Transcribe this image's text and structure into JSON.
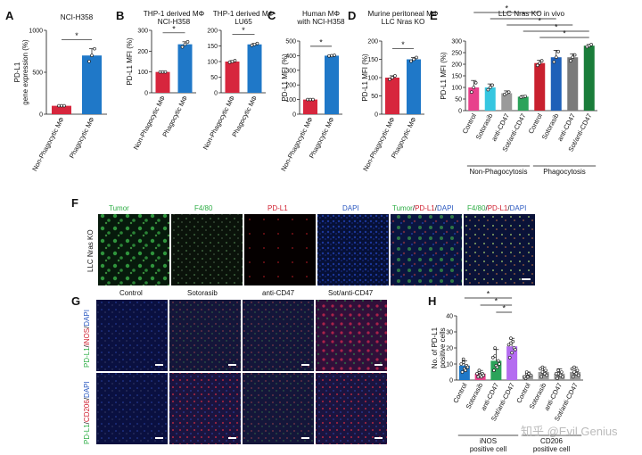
{
  "panel_letters": [
    "A",
    "B",
    "C",
    "D",
    "E",
    "F",
    "G",
    "H"
  ],
  "sig": "*",
  "watermark": "知乎 @Evil Genius",
  "colors": {
    "red": "#d7263d",
    "blue": "#1f78c8",
    "pink": "#e8418c",
    "cyan": "#36c6e0",
    "gray": "#9a9a9a",
    "green": "#2ba35a",
    "darkred": "#c8202e",
    "dkblue": "#1e60b8",
    "dkgray": "#7a7a7a",
    "dkgreen": "#1a7d3a"
  },
  "chart_data": [
    {
      "id": "A",
      "type": "bar",
      "title": "NCI-H358",
      "ylabel": "PD-L1\ngene expression (%)",
      "categories": [
        "Non-Phagocytic MΦ",
        "Phagocytic MΦ"
      ],
      "values": [
        100,
        700
      ],
      "points": [
        [
          100,
          100,
          100
        ],
        [
          630,
          700,
          780
        ]
      ],
      "ylim": [
        0,
        1000
      ],
      "yticks": [
        0,
        500,
        1000
      ],
      "colors": [
        "red",
        "blue"
      ]
    },
    {
      "id": "B1",
      "type": "bar",
      "title": "THP-1 derived MΦ\nNCI-H358",
      "ylabel": "PD-L1  MFI (%)",
      "categories": [
        "Non-Phagocytic MΦ",
        "Phagocytic MΦ"
      ],
      "values": [
        100,
        233
      ],
      "points": [
        [
          100,
          100,
          100
        ],
        [
          220,
          233,
          245
        ]
      ],
      "ylim": [
        0,
        300
      ],
      "yticks": [
        0,
        100,
        200,
        300
      ],
      "colors": [
        "red",
        "blue"
      ]
    },
    {
      "id": "B2",
      "type": "bar",
      "title": "THP-1 derived MΦ\nLU65",
      "ylabel": "",
      "categories": [
        "Non-Phagocytic MΦ",
        "Phagocytic MΦ"
      ],
      "values": [
        100,
        155
      ],
      "points": [
        [
          98,
          100,
          103
        ],
        [
          152,
          155,
          158
        ]
      ],
      "ylim": [
        0,
        200
      ],
      "yticks": [
        0,
        50,
        100,
        150,
        200
      ],
      "colors": [
        "red",
        "blue"
      ]
    },
    {
      "id": "C",
      "type": "bar",
      "title": "Human MΦ\nwith NCI-H358",
      "ylabel": "PD-L1  MFI (%)",
      "categories": [
        "Non-Phagocytic MΦ",
        "Phagocytic MΦ"
      ],
      "values": [
        100,
        400
      ],
      "points": [
        [
          100,
          100,
          100
        ],
        [
          398,
          400,
          403
        ]
      ],
      "ylim": [
        0,
        500
      ],
      "yticks": [
        0,
        100,
        200,
        300,
        400,
        500
      ],
      "colors": [
        "red",
        "blue"
      ]
    },
    {
      "id": "D",
      "type": "bar",
      "title": "Murine peritoneal MΦ\nLLC Nras KO",
      "ylabel": "PD-L1  MFI (%)",
      "categories": [
        "Non-Phagocytic MΦ",
        "Phagocytic MΦ"
      ],
      "values": [
        100,
        150
      ],
      "points": [
        [
          95,
          100,
          105
        ],
        [
          145,
          150,
          155
        ]
      ],
      "ylim": [
        0,
        200
      ],
      "yticks": [
        0,
        50,
        100,
        150,
        200
      ],
      "colors": [
        "red",
        "blue"
      ]
    },
    {
      "id": "E",
      "type": "bar",
      "title": "LLC Nras KO in vivo",
      "ylabel": "PD-L1  MFI (%)",
      "categories": [
        "Control",
        "Sotorasib",
        "anti-CD47",
        "Sot/anti-CD47",
        "Control",
        "Sotorasib",
        "anti-CD47",
        "Sot/anti-CD47"
      ],
      "groups": [
        {
          "label": "Non-Phagocytosis",
          "from": 0,
          "to": 3
        },
        {
          "label": "Phagocytosis",
          "from": 4,
          "to": 7
        }
      ],
      "values": [
        100,
        100,
        75,
        60,
        205,
        230,
        230,
        280
      ],
      "points": [
        [
          80,
          100,
          120
        ],
        [
          90,
          100,
          110
        ],
        [
          70,
          75,
          80
        ],
        [
          58,
          60,
          62
        ],
        [
          195,
          205,
          215
        ],
        [
          210,
          230,
          255
        ],
        [
          215,
          230,
          240
        ],
        [
          275,
          280,
          285
        ]
      ],
      "errors": [
        30,
        15,
        10,
        5,
        12,
        30,
        15,
        5
      ],
      "ylim": [
        0,
        300
      ],
      "yticks": [
        0,
        50,
        100,
        150,
        200,
        250,
        300
      ],
      "colors": [
        "pink",
        "cyan",
        "gray",
        "green",
        "darkred",
        "dkblue",
        "dkgray",
        "dkgreen"
      ]
    },
    {
      "id": "H",
      "type": "bar",
      "title": "",
      "ylabel": "No. of PD-L1\npositive cells",
      "categories": [
        "Control",
        "Sotorasib",
        "anti-CD47",
        "Sot/anti-CD47",
        "Control",
        "Sotorasib",
        "anti-CD47",
        "Sot/anti-CD47"
      ],
      "groups": [
        {
          "label": "iNOS\npositive cell",
          "from": 0,
          "to": 3
        },
        {
          "label": "CD206\npositive cell",
          "from": 4,
          "to": 7
        }
      ],
      "values": [
        9,
        4,
        12,
        21,
        3,
        5,
        4,
        5
      ],
      "points": [
        [
          5,
          7,
          9,
          11,
          13,
          8,
          10,
          6
        ],
        [
          2,
          3,
          4,
          5,
          6,
          3,
          4,
          2
        ],
        [
          6,
          9,
          12,
          15,
          20,
          10,
          14,
          8
        ],
        [
          14,
          17,
          20,
          23,
          26,
          19,
          22,
          24
        ],
        [
          1,
          2,
          3,
          4,
          5,
          3,
          2,
          4
        ],
        [
          2,
          4,
          6,
          8,
          5,
          3,
          7,
          4
        ],
        [
          1,
          3,
          5,
          4,
          6,
          2,
          4,
          3
        ],
        [
          2,
          4,
          6,
          8,
          5,
          3,
          7,
          4
        ]
      ],
      "errors": [
        3,
        2,
        7,
        5,
        2,
        3,
        3,
        3
      ],
      "ylim": [
        0,
        40
      ],
      "yticks": [
        0,
        10,
        20,
        30,
        40
      ],
      "colors": [
        "blue",
        "pink",
        "green",
        "purple",
        "gray",
        "gray",
        "gray",
        "gray"
      ]
    }
  ],
  "F": {
    "tumor": "Tumor",
    "f480": "F4/80",
    "pdl1": "PD-L1",
    "dapi": "DAPI",
    "merge1a": "Tumor",
    "merge1b": "PD-L1",
    "merge1c": "DAPI",
    "merge2a": "F4/80",
    "merge2b": "PD-L1",
    "merge2c": "DAPI",
    "sep": "/",
    "row": "LLC Nras KO"
  },
  "G": {
    "cols": [
      "Control",
      "Sotorasib",
      "anti-CD47",
      "Sot/anti-CD47"
    ],
    "row1a": "PD-L1",
    "row1b": "iNOS",
    "row1c": "DAPI",
    "row2a": "PD-L1",
    "row2b": "CD206",
    "row2c": "DAPI",
    "sep": "/"
  }
}
